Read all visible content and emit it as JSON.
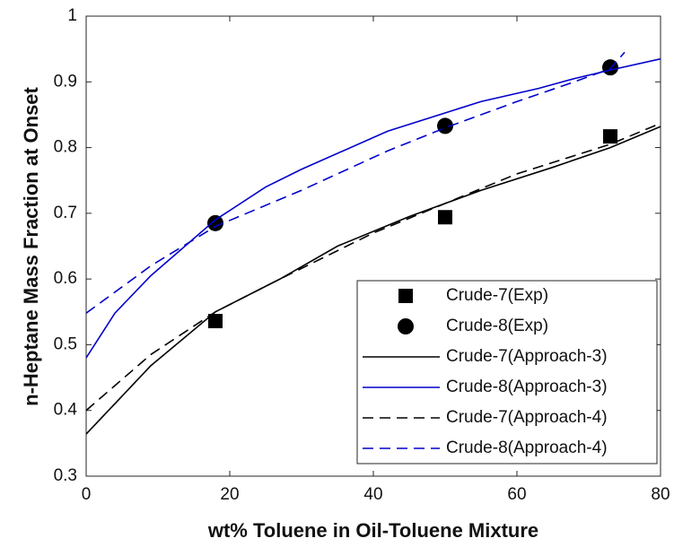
{
  "chart_data": {
    "type": "line",
    "xlabel": "wt% Toluene in Oil-Toluene Mixture",
    "ylabel": "n-Heptane Mass Fraction at Onset",
    "xlim": [
      0,
      80
    ],
    "xticks": [
      0,
      20,
      40,
      60,
      80
    ],
    "ylim": [
      0.3,
      1
    ],
    "yticks": [
      0.3,
      0.4,
      0.5,
      0.6,
      0.7,
      0.8,
      0.9,
      1
    ],
    "legend": "lower right",
    "series": [
      {
        "name": "Crude-7(Exp)",
        "color": "#000000",
        "style": "marker",
        "marker": "square",
        "x": [
          18,
          50,
          73
        ],
        "values": [
          0.536,
          0.694,
          0.817
        ]
      },
      {
        "name": "Crude-8(Exp)",
        "color": "#000000",
        "style": "marker",
        "marker": "circle",
        "x": [
          18,
          50,
          73
        ],
        "values": [
          0.685,
          0.833,
          0.922
        ]
      },
      {
        "name": "Crude-7(Approach-3)",
        "color": "#000000",
        "style": "line",
        "dash": false,
        "x": [
          0,
          9,
          18,
          27,
          35,
          45,
          55,
          65,
          73,
          80
        ],
        "values": [
          0.364,
          0.468,
          0.55,
          0.6,
          0.65,
          0.695,
          0.735,
          0.77,
          0.8,
          0.832
        ]
      },
      {
        "name": "Crude-8(Approach-3)",
        "color": "#0000cc",
        "style": "line",
        "dash": false,
        "x": [
          0,
          4,
          9,
          18,
          25,
          30,
          42,
          55,
          63,
          68,
          73,
          80
        ],
        "values": [
          0.48,
          0.548,
          0.605,
          0.69,
          0.74,
          0.767,
          0.825,
          0.87,
          0.89,
          0.905,
          0.918,
          0.935
        ]
      },
      {
        "name": "Crude-7(Approach-4)",
        "color": "#000000",
        "style": "line",
        "dash": true,
        "x": [
          0,
          9,
          18,
          27,
          40,
          50,
          60,
          73,
          80
        ],
        "values": [
          0.4,
          0.485,
          0.55,
          0.6,
          0.67,
          0.715,
          0.76,
          0.805,
          0.837
        ]
      },
      {
        "name": "Crude-8(Approach-4)",
        "color": "#0000cc",
        "style": "line",
        "dash": true,
        "x": [
          0,
          9,
          18,
          30,
          42,
          50,
          60,
          68,
          73,
          75
        ],
        "values": [
          0.548,
          0.62,
          0.68,
          0.735,
          0.795,
          0.83,
          0.87,
          0.9,
          0.92,
          0.945
        ]
      }
    ]
  }
}
